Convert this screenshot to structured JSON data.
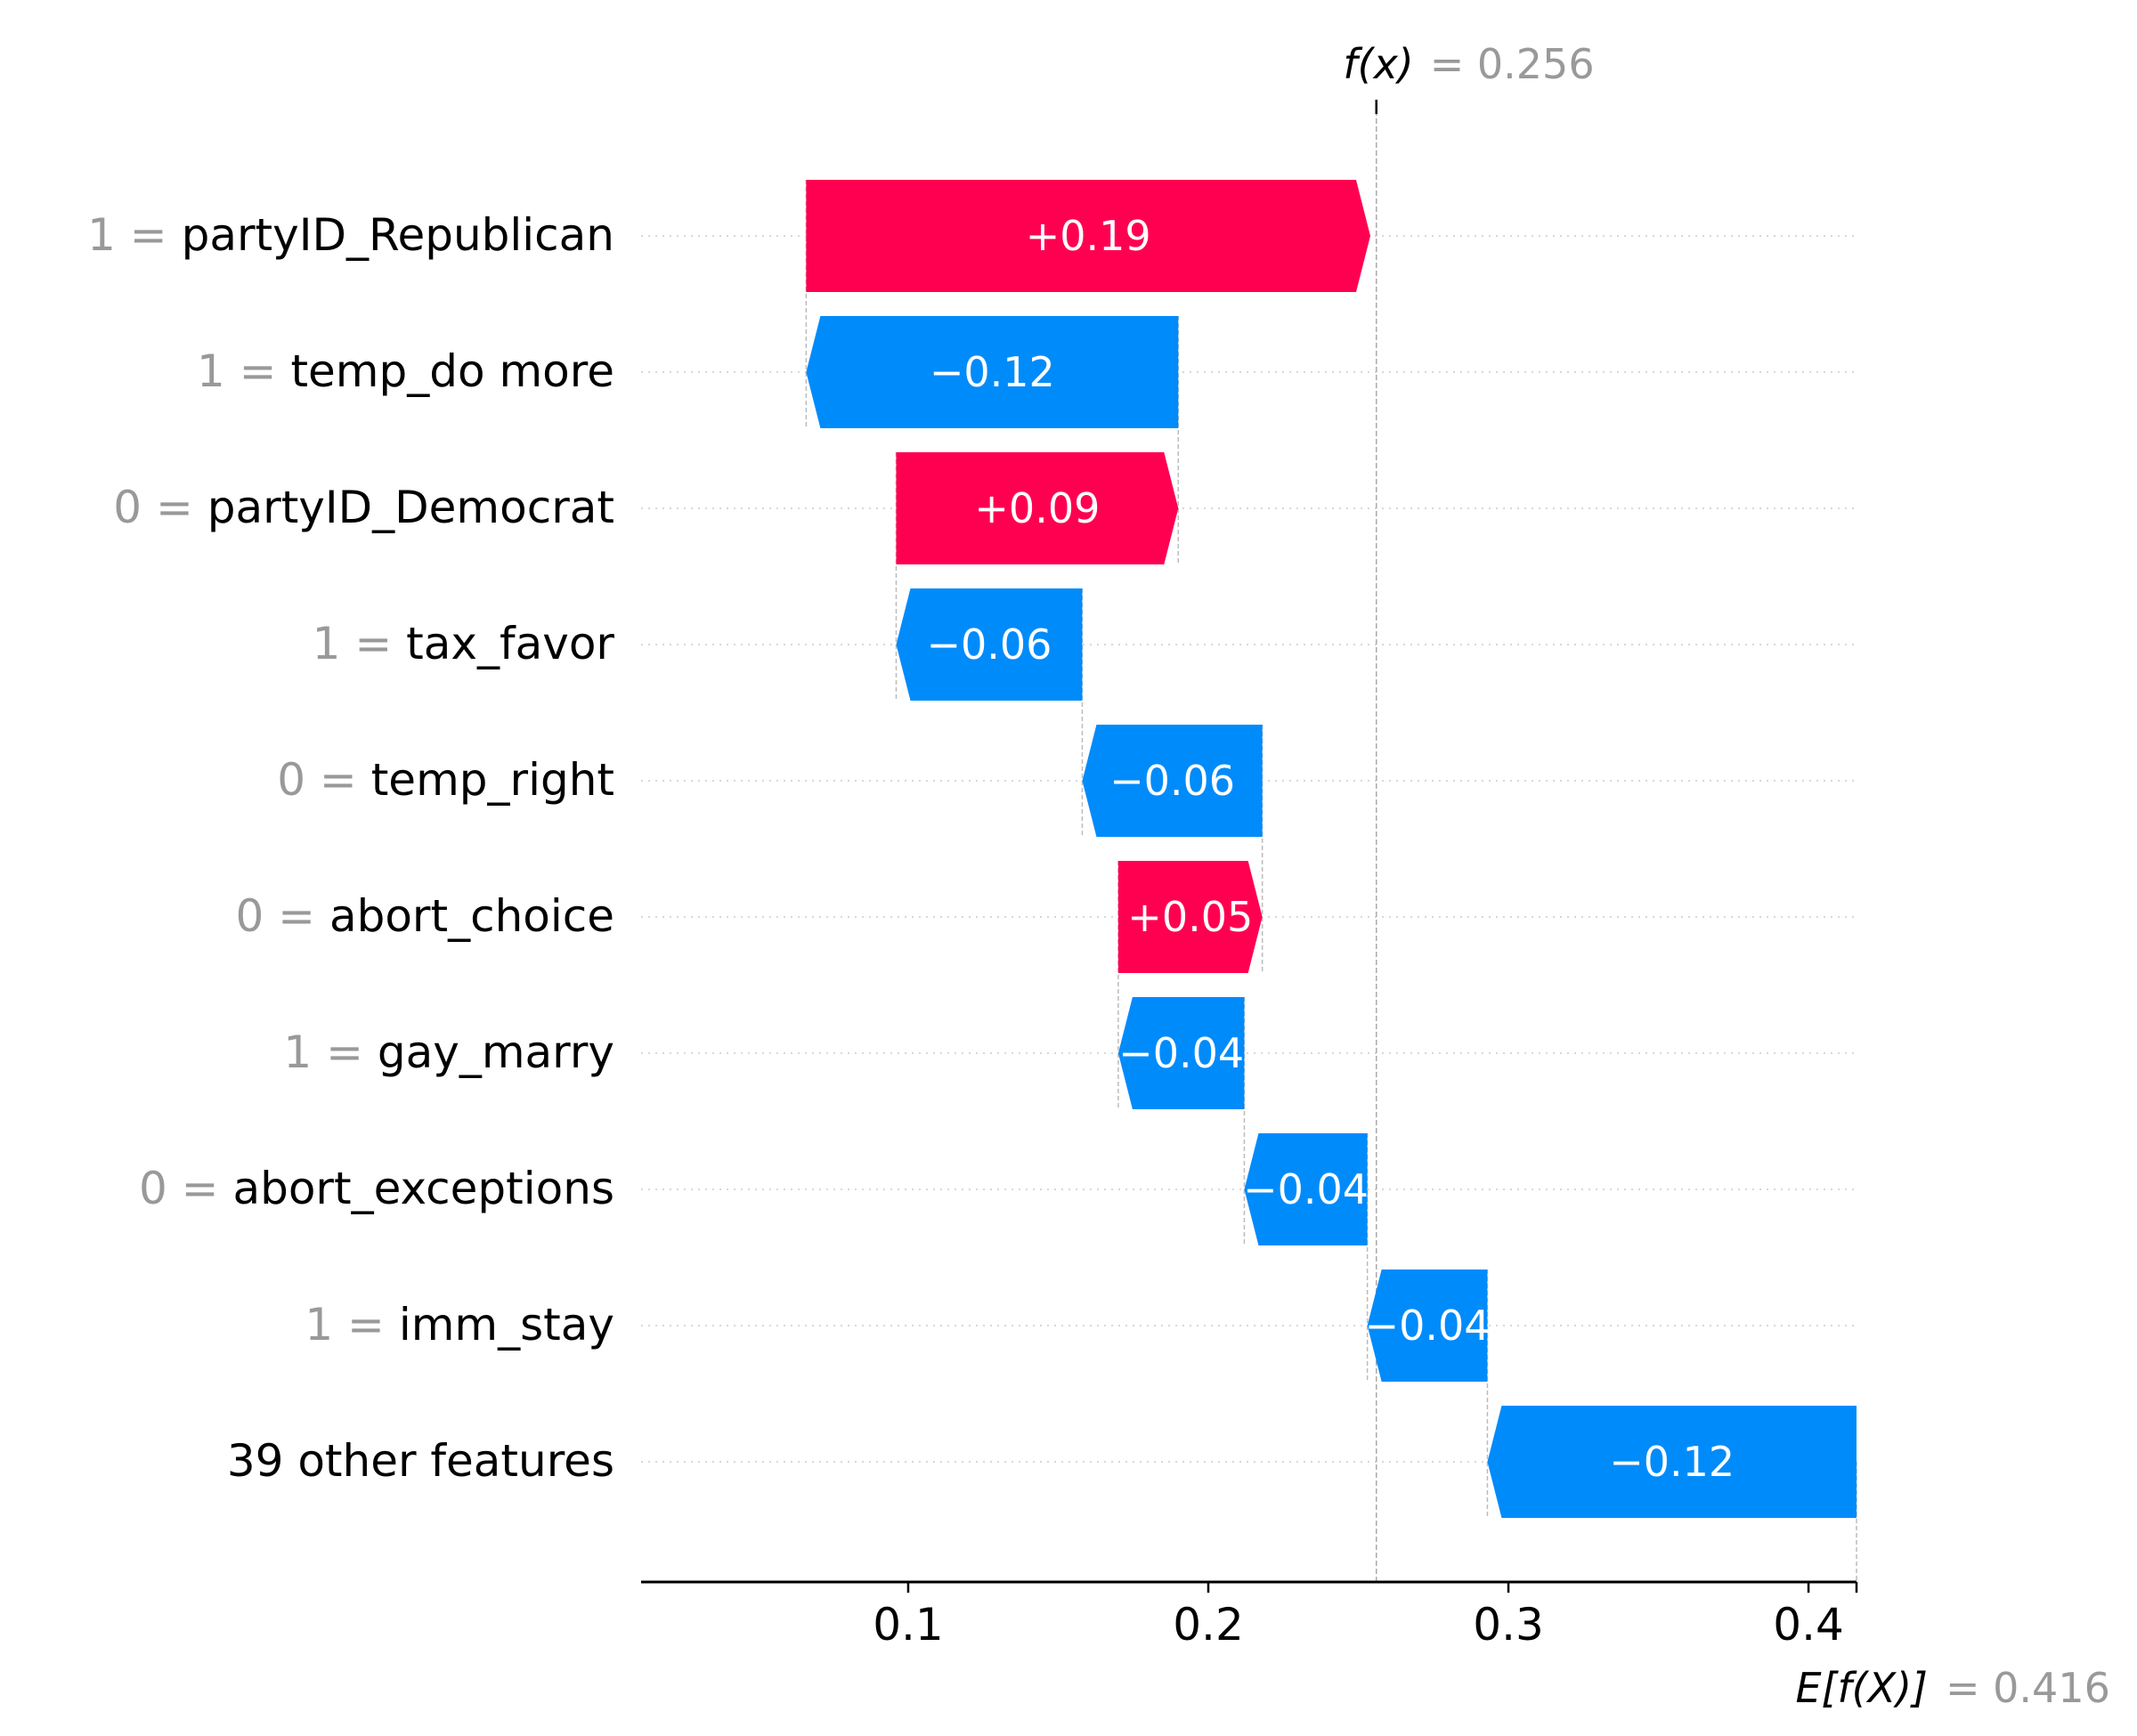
{
  "chart_data": {
    "type": "waterfall",
    "fx": {
      "label": "f(x)",
      "value": "0.256",
      "x": 0.256
    },
    "ex": {
      "label": "E[f(X)]",
      "value": "0.416",
      "x": 0.416
    },
    "x_ticks": [
      {
        "value": 0.1,
        "label": "0.1"
      },
      {
        "value": 0.2,
        "label": "0.2"
      },
      {
        "value": 0.3,
        "label": "0.3"
      },
      {
        "value": 0.4,
        "label": "0.4"
      }
    ],
    "xlim": [
      0.011,
      0.416
    ],
    "colors": {
      "positive": "#ff0051",
      "negative": "#008bfb",
      "muted": "#999999"
    },
    "features": [
      {
        "feature_value": "1",
        "name": "partyID_Republican",
        "shap": 0.188,
        "label": "+0.19"
      },
      {
        "feature_value": "1",
        "name": "temp_do more",
        "shap": -0.124,
        "label": "−0.12"
      },
      {
        "feature_value": "0",
        "name": "partyID_Democrat",
        "shap": 0.094,
        "label": "+0.09"
      },
      {
        "feature_value": "1",
        "name": "tax_favor",
        "shap": -0.062,
        "label": "−0.06"
      },
      {
        "feature_value": "0",
        "name": "temp_right",
        "shap": -0.06,
        "label": "−0.06"
      },
      {
        "feature_value": "0",
        "name": "abort_choice",
        "shap": 0.048,
        "label": "+0.05"
      },
      {
        "feature_value": "1",
        "name": "gay_marry",
        "shap": -0.042,
        "label": "−0.04"
      },
      {
        "feature_value": "0",
        "name": "abort_exceptions",
        "shap": -0.041,
        "label": "−0.04"
      },
      {
        "feature_value": "1",
        "name": "imm_stay",
        "shap": -0.04,
        "label": "−0.04"
      },
      {
        "feature_value": "",
        "name": "39 other features",
        "shap": -0.123,
        "label": "−0.12"
      }
    ]
  }
}
